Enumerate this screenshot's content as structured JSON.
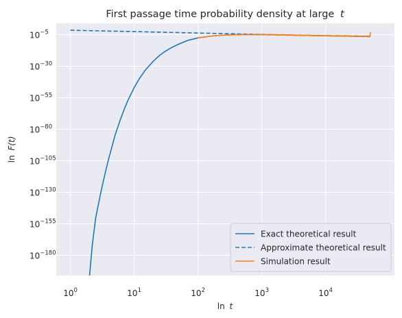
{
  "chart_data": {
    "type": "line",
    "title": "First passage time probability density at large",
    "title_var": "t",
    "xlabel_prefix": "ln",
    "xlabel_var": "t",
    "ylabel_prefix": "ln",
    "ylabel_var": "F(t)",
    "xscale": "log",
    "yscale": "log",
    "xlim": [
      0.6,
      120000
    ],
    "ylim_exponent": [
      -196,
      4
    ],
    "x_ticks": [
      {
        "base": "10",
        "exp": "0",
        "value": 1
      },
      {
        "base": "10",
        "exp": "1",
        "value": 10
      },
      {
        "base": "10",
        "exp": "2",
        "value": 100
      },
      {
        "base": "10",
        "exp": "3",
        "value": 1000
      },
      {
        "base": "10",
        "exp": "4",
        "value": 10000
      }
    ],
    "y_ticks": [
      {
        "base": "10",
        "exp": "−5",
        "exponent": -5
      },
      {
        "base": "10",
        "exp": "−30",
        "exponent": -30
      },
      {
        "base": "10",
        "exp": "−55",
        "exponent": -55
      },
      {
        "base": "10",
        "exp": "−80",
        "exponent": -80
      },
      {
        "base": "10",
        "exp": "−105",
        "exponent": -105
      },
      {
        "base": "10",
        "exp": "−130",
        "exponent": -130
      },
      {
        "base": "10",
        "exp": "−155",
        "exponent": -155
      },
      {
        "base": "10",
        "exp": "−180",
        "exponent": -180
      }
    ],
    "grid": true,
    "legend_position": "lower-right",
    "series": [
      {
        "name": "Exact theoretical result",
        "color": "#1f77b4",
        "style": "solid",
        "x": [
          2,
          2.2,
          2.5,
          3,
          3.5,
          4,
          5,
          6,
          7,
          8,
          10,
          12,
          15,
          20,
          25,
          30,
          40,
          50,
          70,
          100,
          150,
          200,
          300,
          500,
          700,
          1000,
          2000,
          3000,
          5000,
          10000,
          20000,
          50000
        ],
        "y_exponent": [
          -196,
          -172,
          -150,
          -130,
          -115,
          -103,
          -85,
          -73,
          -64,
          -57,
          -47,
          -40,
          -33,
          -26,
          -21.5,
          -18.5,
          -14.8,
          -12.5,
          -9.5,
          -7.6,
          -6.3,
          -5.7,
          -5.2,
          -4.9,
          -4.9,
          -5,
          -5.2,
          -5.4,
          -5.6,
          -5.9,
          -6.1,
          -6.3
        ]
      },
      {
        "name": "Approximate theoretical result",
        "color": "#1f77b4",
        "style": "dashed",
        "x": [
          1,
          10,
          100,
          1000,
          10000,
          50000
        ],
        "y_exponent": [
          -1.5,
          -2.6,
          -3.7,
          -4.8,
          -5.9,
          -6.6
        ]
      },
      {
        "name": "Simulation result",
        "color": "#ff7f0e",
        "style": "solid",
        "x": [
          100,
          150,
          200,
          300,
          500,
          700,
          1000,
          2000,
          3000,
          5000,
          10000,
          20000,
          50000
        ],
        "y_exponent": [
          -7.6,
          -6.3,
          -5.7,
          -5.2,
          -4.9,
          -4.9,
          -5,
          -5.2,
          -5.4,
          -5.6,
          -5.9,
          -6.1,
          -6.3
        ]
      }
    ]
  }
}
